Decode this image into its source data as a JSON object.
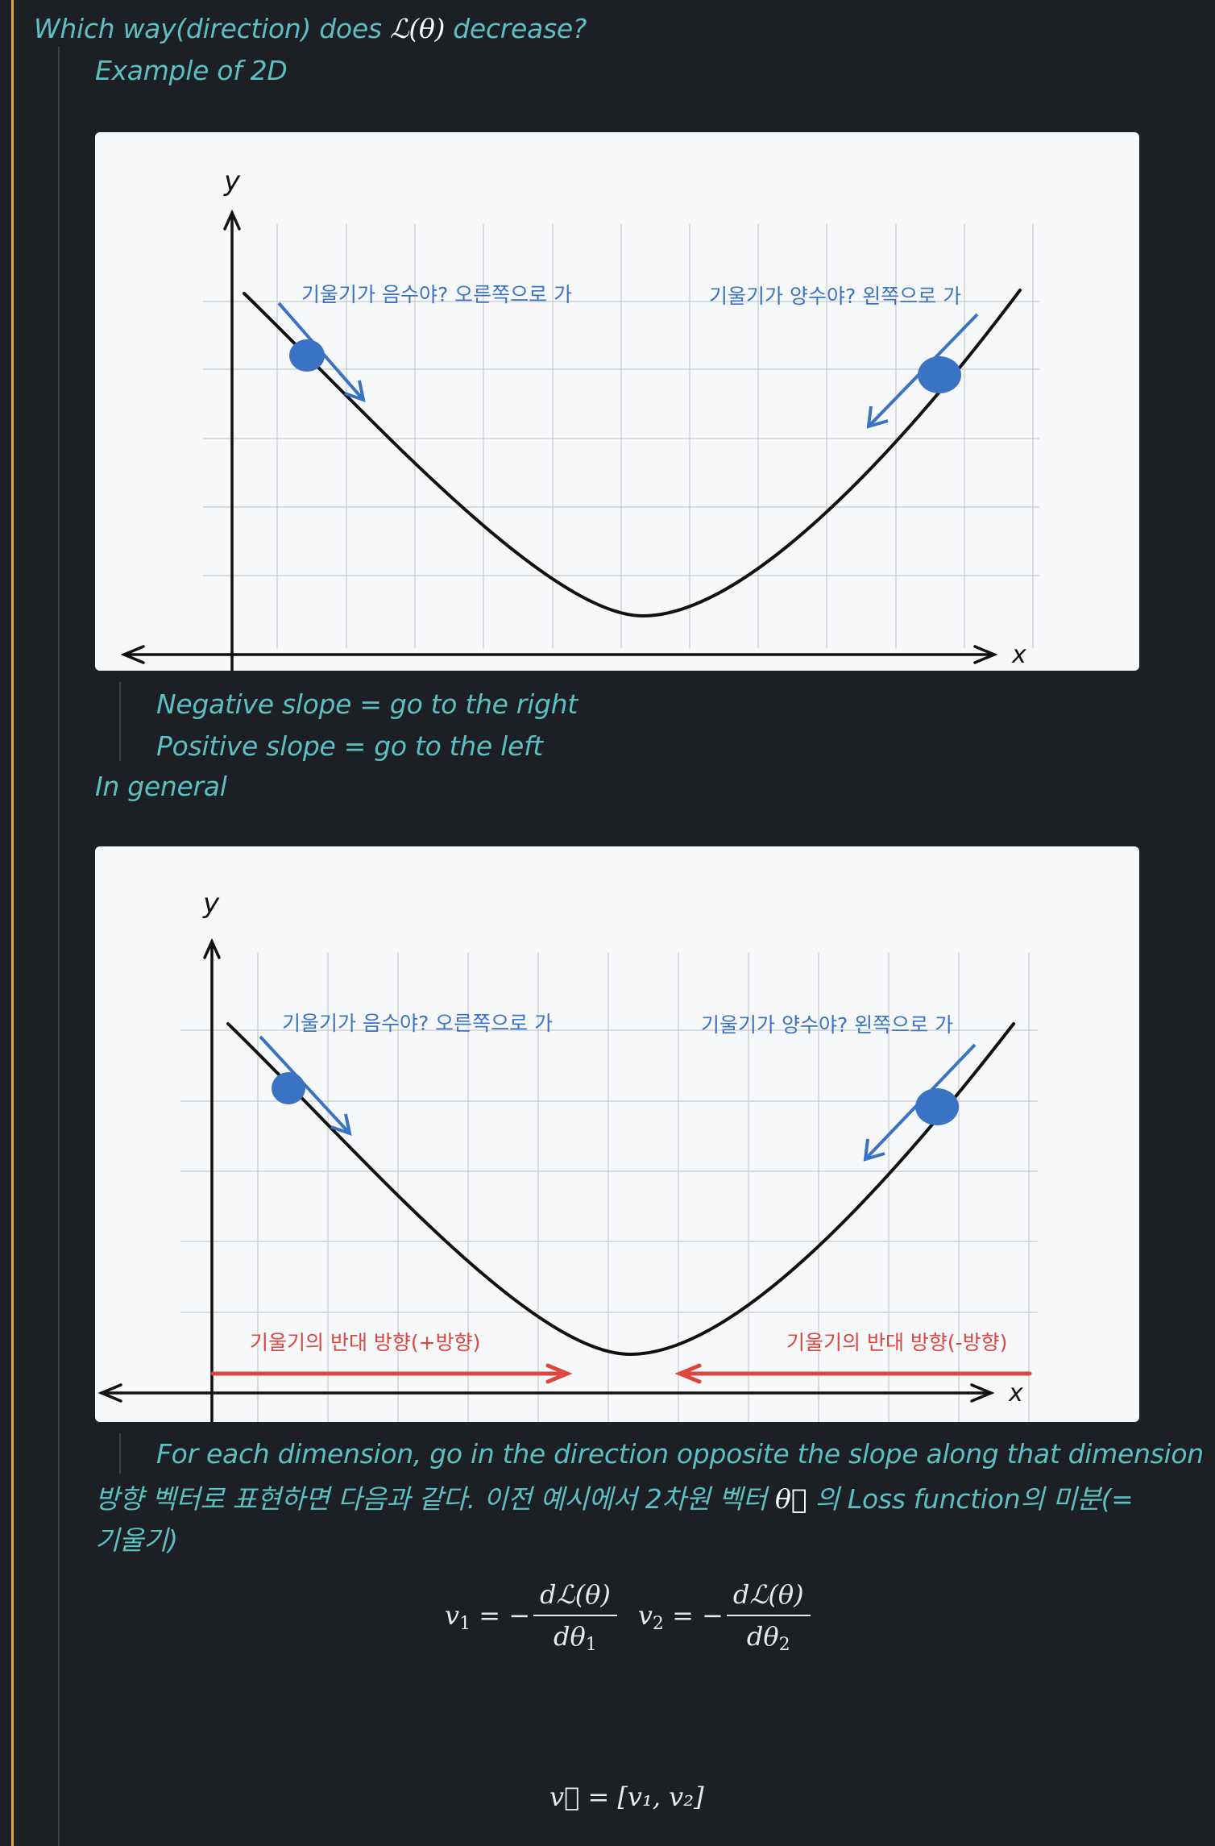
{
  "question": {
    "prefix": "Which way(direction) does ",
    "math": "ℒ(θ)",
    "suffix": " decrease?"
  },
  "example_heading": "Example of 2D",
  "figure1": {
    "y_axis_label": "y",
    "x_axis_label": "x",
    "left_annotation": "기울기가 음수야? 오른쪽으로 가",
    "right_annotation": "기울기가 양수야? 왼쪽으로 가"
  },
  "slope_notes": [
    "Negative slope = go to the right",
    "Positive slope = go to the left"
  ],
  "in_general": "In general",
  "figure2": {
    "y_axis_label": "y",
    "x_axis_label": "x",
    "left_annotation": "기울기가 음수야? 오른쪽으로 가",
    "right_annotation": "기울기가 양수야? 왼쪽으로 가",
    "left_arrow_label": "기울기의 반대 방향(+방향)",
    "right_arrow_label": "기울기의 반대 방향(-방향)"
  },
  "dimension_note": "For each dimension, go in the direction opposite the slope along that dimension",
  "vector_note": {
    "part1": "방향 벡터로 표현하면 다음과 같다. 이전 예시에서 2차원 벡터 ",
    "math": "θ⃗",
    "part2": " 의 Loss function의 미분(=기울기)"
  },
  "formulas": {
    "v1_lhs": "v",
    "v1_sub": "1",
    "v1_eq": " = −",
    "v1_num": "dℒ(θ)",
    "v1_den": "dθ",
    "v1_den_sub": "1",
    "v2_lhs": "v",
    "v2_sub": "2",
    "v2_eq": " = −",
    "v2_num": "dℒ(θ)",
    "v2_den": "dθ",
    "v2_den_sub": "2",
    "vector": "v⃗ = [v₁, v₂]"
  },
  "colors": {
    "background": "#1c1f24",
    "accent_bar": "#e8a33a",
    "text": "#5bbfc4",
    "annotation_blue": "#3a72c4",
    "annotation_red": "#d9473f"
  }
}
